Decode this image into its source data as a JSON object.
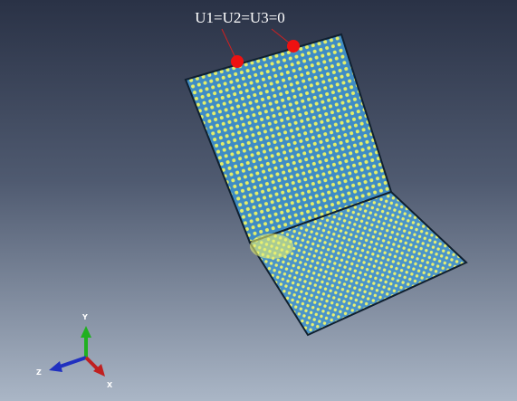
{
  "annotation": {
    "label": "U1=U2=U3=0"
  },
  "triad": {
    "x": "X",
    "y": "Y",
    "z": "Z"
  }
}
